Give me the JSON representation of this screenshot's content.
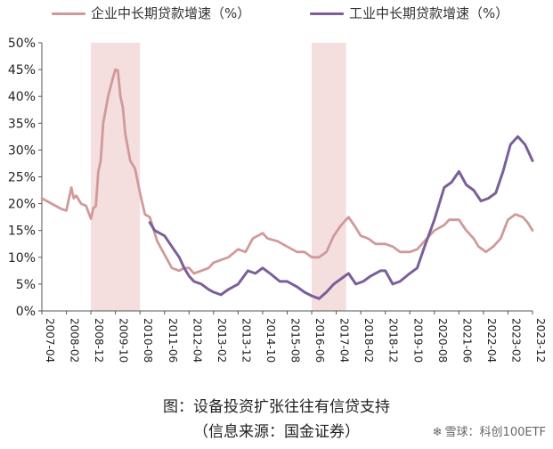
{
  "chart_data": {
    "type": "line",
    "title": "",
    "xlabel": "",
    "ylabel": "",
    "ylim": [
      0,
      50
    ],
    "y_ticks": [
      "0%",
      "5%",
      "10%",
      "15%",
      "20%",
      "25%",
      "30%",
      "35%",
      "40%",
      "45%",
      "50%"
    ],
    "x_ticks": [
      "2007-04",
      "2008-02",
      "2008-12",
      "2009-10",
      "2010-08",
      "2011-06",
      "2012-04",
      "2013-02",
      "2013-12",
      "2014-10",
      "2015-08",
      "2016-06",
      "2017-04",
      "2018-02",
      "2018-12",
      "2019-10",
      "2020-08",
      "2021-06",
      "2022-04",
      "2023-02",
      "2023-12"
    ],
    "shaded_periods": [
      [
        "2008-12",
        "2010-08"
      ],
      [
        "2016-06",
        "2017-08"
      ]
    ],
    "legend_position": "top",
    "grid": false,
    "colors": {
      "enterprise": "#d09a9a",
      "industry": "#7a5f9a",
      "shade": "#f4dede"
    },
    "series": [
      {
        "name": "企业中长期贷款增速（%）",
        "key": "enterprise",
        "points": [
          [
            "2007-04",
            21
          ],
          [
            "2007-08",
            20
          ],
          [
            "2007-12",
            19
          ],
          [
            "2008-02",
            18.7
          ],
          [
            "2008-04",
            23
          ],
          [
            "2008-05",
            21
          ],
          [
            "2008-06",
            21.5
          ],
          [
            "2008-08",
            20
          ],
          [
            "2008-10",
            19.6
          ],
          [
            "2008-12",
            17.2
          ],
          [
            "2009-01",
            19.2
          ],
          [
            "2009-02",
            19.5
          ],
          [
            "2009-03",
            26
          ],
          [
            "2009-04",
            28
          ],
          [
            "2009-05",
            35
          ],
          [
            "2009-07",
            40
          ],
          [
            "2009-09",
            43.5
          ],
          [
            "2009-10",
            45
          ],
          [
            "2009-11",
            44.8
          ],
          [
            "2009-12",
            40
          ],
          [
            "2010-01",
            38
          ],
          [
            "2010-02",
            33
          ],
          [
            "2010-04",
            28
          ],
          [
            "2010-06",
            26.5
          ],
          [
            "2010-08",
            22
          ],
          [
            "2010-10",
            18
          ],
          [
            "2010-12",
            17.5
          ],
          [
            "2011-03",
            13
          ],
          [
            "2011-06",
            10.5
          ],
          [
            "2011-09",
            8
          ],
          [
            "2011-12",
            7.5
          ],
          [
            "2012-02",
            8
          ],
          [
            "2012-04",
            8
          ],
          [
            "2012-06",
            7
          ],
          [
            "2012-09",
            7.5
          ],
          [
            "2012-12",
            8
          ],
          [
            "2013-02",
            9
          ],
          [
            "2013-05",
            9.5
          ],
          [
            "2013-08",
            10
          ],
          [
            "2013-12",
            11.5
          ],
          [
            "2014-03",
            11
          ],
          [
            "2014-06",
            13.5
          ],
          [
            "2014-10",
            14.5
          ],
          [
            "2014-12",
            13.5
          ],
          [
            "2015-04",
            13
          ],
          [
            "2015-08",
            12
          ],
          [
            "2015-12",
            11
          ],
          [
            "2016-03",
            11
          ],
          [
            "2016-06",
            10
          ],
          [
            "2016-09",
            10
          ],
          [
            "2016-12",
            11
          ],
          [
            "2017-01",
            12
          ],
          [
            "2017-03",
            14
          ],
          [
            "2017-06",
            16
          ],
          [
            "2017-09",
            17.5
          ],
          [
            "2017-12",
            15.5
          ],
          [
            "2018-02",
            14
          ],
          [
            "2018-05",
            13.5
          ],
          [
            "2018-08",
            12.5
          ],
          [
            "2018-12",
            12.5
          ],
          [
            "2019-03",
            12
          ],
          [
            "2019-06",
            11
          ],
          [
            "2019-10",
            11
          ],
          [
            "2020-01",
            11.5
          ],
          [
            "2020-04",
            13
          ],
          [
            "2020-08",
            15
          ],
          [
            "2020-12",
            16
          ],
          [
            "2021-02",
            17
          ],
          [
            "2021-06",
            17
          ],
          [
            "2021-09",
            15
          ],
          [
            "2021-12",
            13.5
          ],
          [
            "2022-02",
            12
          ],
          [
            "2022-05",
            11
          ],
          [
            "2022-08",
            12
          ],
          [
            "2022-11",
            13.5
          ],
          [
            "2023-02",
            17
          ],
          [
            "2023-05",
            18
          ],
          [
            "2023-08",
            17.5
          ],
          [
            "2023-10",
            16.5
          ],
          [
            "2023-12",
            15
          ]
        ]
      },
      {
        "name": "工业中长期贷款增速（%）",
        "key": "industry",
        "points": [
          [
            "2010-12",
            16.5
          ],
          [
            "2011-02",
            15
          ],
          [
            "2011-06",
            14
          ],
          [
            "2011-09",
            12
          ],
          [
            "2011-12",
            10
          ],
          [
            "2012-02",
            8
          ],
          [
            "2012-04",
            6.5
          ],
          [
            "2012-06",
            5.5
          ],
          [
            "2012-09",
            5
          ],
          [
            "2012-12",
            4
          ],
          [
            "2013-02",
            3.5
          ],
          [
            "2013-05",
            3
          ],
          [
            "2013-08",
            4
          ],
          [
            "2013-12",
            5
          ],
          [
            "2014-04",
            7.5
          ],
          [
            "2014-07",
            7
          ],
          [
            "2014-10",
            8
          ],
          [
            "2015-01",
            7
          ],
          [
            "2015-05",
            5.5
          ],
          [
            "2015-08",
            5.5
          ],
          [
            "2015-12",
            4.5
          ],
          [
            "2016-03",
            3.5
          ],
          [
            "2016-06",
            2.8
          ],
          [
            "2016-09",
            2.3
          ],
          [
            "2016-12",
            3.5
          ],
          [
            "2017-03",
            5
          ],
          [
            "2017-06",
            6
          ],
          [
            "2017-09",
            7
          ],
          [
            "2017-12",
            5
          ],
          [
            "2018-03",
            5.5
          ],
          [
            "2018-06",
            6.5
          ],
          [
            "2018-10",
            7.5
          ],
          [
            "2018-12",
            7.5
          ],
          [
            "2019-03",
            5
          ],
          [
            "2019-06",
            5.5
          ],
          [
            "2019-10",
            7
          ],
          [
            "2020-01",
            8
          ],
          [
            "2020-04",
            12
          ],
          [
            "2020-08",
            17
          ],
          [
            "2020-12",
            23
          ],
          [
            "2021-03",
            24
          ],
          [
            "2021-06",
            26
          ],
          [
            "2021-09",
            23.5
          ],
          [
            "2021-12",
            22.5
          ],
          [
            "2022-03",
            20.5
          ],
          [
            "2022-06",
            21
          ],
          [
            "2022-09",
            22
          ],
          [
            "2022-12",
            26
          ],
          [
            "2023-03",
            31
          ],
          [
            "2023-06",
            32.5
          ],
          [
            "2023-09",
            31
          ],
          [
            "2023-12",
            28
          ]
        ]
      }
    ]
  },
  "caption": {
    "title": "图：设备投资扩张往往有信贷支持",
    "source": "（信息来源：国金证券）"
  },
  "watermark": {
    "text": "雪球：科创100ETF",
    "icon": "snowflake-icon"
  }
}
